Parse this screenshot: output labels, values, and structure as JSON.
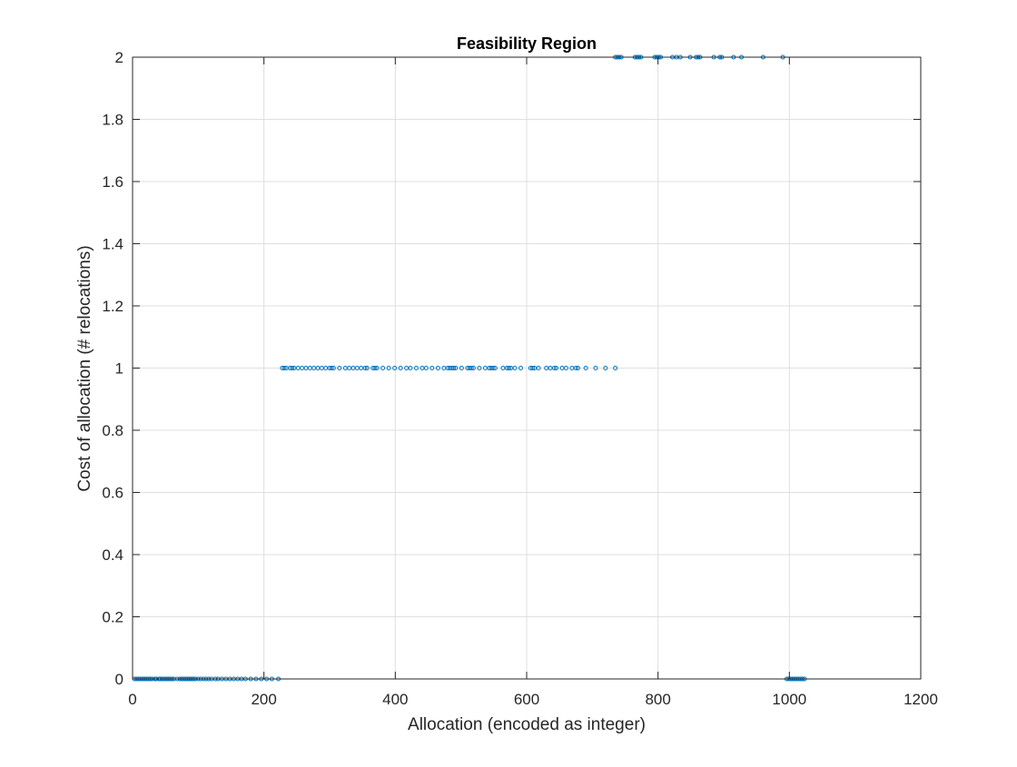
{
  "chart_data": {
    "type": "scatter",
    "title": "Feasibility Region",
    "xlabel": "Allocation (encoded as integer)",
    "ylabel": "Cost of allocation (# relocations)",
    "xlim": [
      0,
      1200
    ],
    "ylim": [
      0,
      2
    ],
    "xticks": [
      0,
      200,
      400,
      600,
      800,
      1000,
      1200
    ],
    "yticks": [
      0,
      0.2,
      0.4,
      0.6,
      0.8,
      1,
      1.2,
      1.4,
      1.6,
      1.8,
      2
    ],
    "xtick_labels": [
      "0",
      "200",
      "400",
      "600",
      "800",
      "1000",
      "1200"
    ],
    "ytick_labels": [
      "0",
      "0.2",
      "0.4",
      "0.6",
      "0.8",
      "1",
      "1.2",
      "1.4",
      "1.6",
      "1.8",
      "2"
    ],
    "grid": true,
    "color": "#0072BD",
    "marker": "open-circle",
    "series": [
      {
        "points": [
          [
            3,
            0
          ],
          [
            6,
            0
          ],
          [
            9,
            0
          ],
          [
            12,
            0
          ],
          [
            15,
            0
          ],
          [
            18,
            0
          ],
          [
            21,
            0
          ],
          [
            24,
            0
          ],
          [
            27,
            0
          ],
          [
            30,
            0
          ],
          [
            34,
            0
          ],
          [
            36,
            0
          ],
          [
            40,
            0
          ],
          [
            42,
            0
          ],
          [
            45,
            0
          ],
          [
            48,
            0
          ],
          [
            51,
            0
          ],
          [
            54,
            0
          ],
          [
            57,
            0
          ],
          [
            60,
            0
          ],
          [
            63,
            0
          ],
          [
            68,
            0
          ],
          [
            72,
            0
          ],
          [
            75,
            0
          ],
          [
            78,
            0
          ],
          [
            81,
            0
          ],
          [
            84,
            0
          ],
          [
            87,
            0
          ],
          [
            90,
            0
          ],
          [
            93,
            0
          ],
          [
            96,
            0
          ],
          [
            100,
            0
          ],
          [
            104,
            0
          ],
          [
            108,
            0
          ],
          [
            112,
            0
          ],
          [
            116,
            0
          ],
          [
            120,
            0
          ],
          [
            126,
            0
          ],
          [
            130,
            0
          ],
          [
            136,
            0
          ],
          [
            142,
            0
          ],
          [
            148,
            0
          ],
          [
            154,
            0
          ],
          [
            160,
            0
          ],
          [
            166,
            0
          ],
          [
            172,
            0
          ],
          [
            180,
            0
          ],
          [
            188,
            0
          ],
          [
            196,
            0
          ],
          [
            204,
            0
          ],
          [
            212,
            0
          ],
          [
            222,
            0
          ],
          [
            228,
            1
          ],
          [
            231,
            1
          ],
          [
            234,
            1
          ],
          [
            240,
            1
          ],
          [
            243,
            1
          ],
          [
            246,
            1
          ],
          [
            252,
            1
          ],
          [
            258,
            1
          ],
          [
            264,
            1
          ],
          [
            270,
            1
          ],
          [
            276,
            1
          ],
          [
            282,
            1
          ],
          [
            288,
            1
          ],
          [
            294,
            1
          ],
          [
            300,
            1
          ],
          [
            303,
            1
          ],
          [
            306,
            1
          ],
          [
            315,
            1
          ],
          [
            324,
            1
          ],
          [
            330,
            1
          ],
          [
            336,
            1
          ],
          [
            342,
            1
          ],
          [
            348,
            1
          ],
          [
            354,
            1
          ],
          [
            357,
            1
          ],
          [
            366,
            1
          ],
          [
            369,
            1
          ],
          [
            372,
            1
          ],
          [
            381,
            1
          ],
          [
            390,
            1
          ],
          [
            399,
            1
          ],
          [
            408,
            1
          ],
          [
            417,
            1
          ],
          [
            423,
            1
          ],
          [
            432,
            1
          ],
          [
            441,
            1
          ],
          [
            447,
            1
          ],
          [
            456,
            1
          ],
          [
            465,
            1
          ],
          [
            474,
            1
          ],
          [
            480,
            1
          ],
          [
            483,
            1
          ],
          [
            486,
            1
          ],
          [
            489,
            1
          ],
          [
            492,
            1
          ],
          [
            501,
            1
          ],
          [
            510,
            1
          ],
          [
            513,
            1
          ],
          [
            516,
            1
          ],
          [
            519,
            1
          ],
          [
            528,
            1
          ],
          [
            537,
            1
          ],
          [
            543,
            1
          ],
          [
            546,
            1
          ],
          [
            549,
            1
          ],
          [
            552,
            1
          ],
          [
            564,
            1
          ],
          [
            570,
            1
          ],
          [
            573,
            1
          ],
          [
            576,
            1
          ],
          [
            582,
            1
          ],
          [
            591,
            1
          ],
          [
            606,
            1
          ],
          [
            609,
            1
          ],
          [
            612,
            1
          ],
          [
            618,
            1
          ],
          [
            630,
            1
          ],
          [
            636,
            1
          ],
          [
            642,
            1
          ],
          [
            645,
            1
          ],
          [
            654,
            1
          ],
          [
            660,
            1
          ],
          [
            669,
            1
          ],
          [
            675,
            1
          ],
          [
            678,
            1
          ],
          [
            690,
            1
          ],
          [
            705,
            1
          ],
          [
            720,
            1
          ],
          [
            735,
            1
          ],
          [
            735,
            2
          ],
          [
            738,
            2
          ],
          [
            741,
            2
          ],
          [
            744,
            2
          ],
          [
            765,
            2
          ],
          [
            768,
            2
          ],
          [
            771,
            2
          ],
          [
            774,
            2
          ],
          [
            795,
            2
          ],
          [
            798,
            2
          ],
          [
            801,
            2
          ],
          [
            804,
            2
          ],
          [
            822,
            2
          ],
          [
            828,
            2
          ],
          [
            834,
            2
          ],
          [
            849,
            2
          ],
          [
            858,
            2
          ],
          [
            861,
            2
          ],
          [
            864,
            2
          ],
          [
            885,
            2
          ],
          [
            894,
            2
          ],
          [
            897,
            2
          ],
          [
            915,
            2
          ],
          [
            927,
            2
          ],
          [
            960,
            2
          ],
          [
            990,
            2
          ],
          [
            996,
            0
          ],
          [
            999,
            0
          ],
          [
            1002,
            0
          ],
          [
            1005,
            0
          ],
          [
            1008,
            0
          ],
          [
            1011,
            0
          ],
          [
            1014,
            0
          ],
          [
            1017,
            0
          ],
          [
            1020,
            0
          ],
          [
            1023,
            0
          ]
        ]
      }
    ]
  }
}
